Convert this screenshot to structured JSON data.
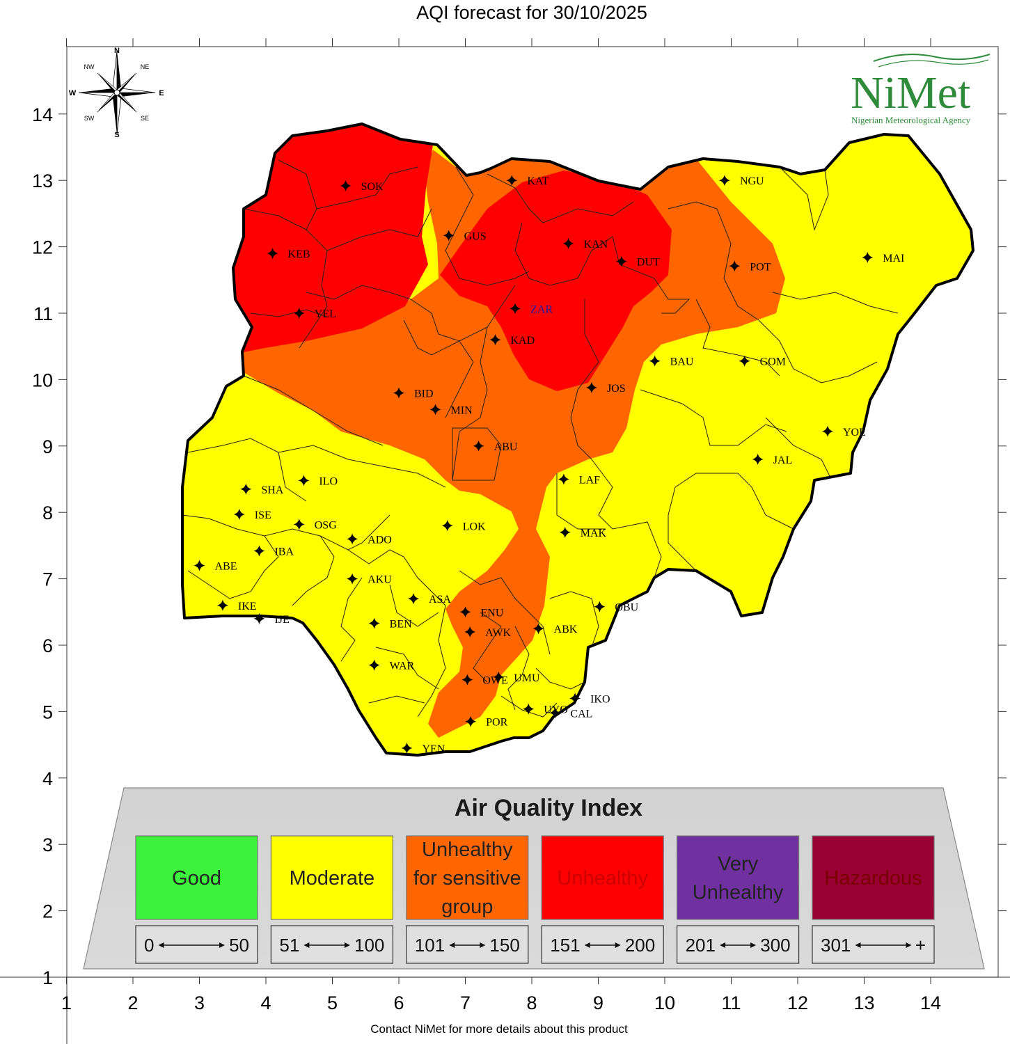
{
  "title": "AQI forecast for 30/10/2025",
  "footer": "Contact NiMet for more details about this product",
  "axes": {
    "x_ticks": [
      "1",
      "2",
      "3",
      "4",
      "5",
      "6",
      "7",
      "8",
      "9",
      "10",
      "11",
      "12",
      "13",
      "14"
    ],
    "y_ticks": [
      "1",
      "2",
      "3",
      "4",
      "5",
      "6",
      "7",
      "8",
      "9",
      "10",
      "11",
      "12",
      "13",
      "14"
    ]
  },
  "compass": {
    "n": "N",
    "s": "S",
    "e": "E",
    "w": "W",
    "ne": "NE",
    "nw": "NW",
    "se": "SE",
    "sw": "SW"
  },
  "logo": {
    "name": "NiMet",
    "agency": "Nigerian Meteorological Agency"
  },
  "colors": {
    "good": "#3cf23c",
    "moderate": "#ffff00",
    "sensitive": "#ff6600",
    "unhealthy": "#ff0000",
    "very_unhealthy": "#7030a0",
    "hazardous": "#990033"
  },
  "cities": [
    {
      "code": "SOK",
      "lon": 5.2,
      "lat": 12.92
    },
    {
      "code": "KAT",
      "lon": 7.7,
      "lat": 13.0
    },
    {
      "code": "NGU",
      "lon": 10.9,
      "lat": 13.0
    },
    {
      "code": "KEB",
      "lon": 4.1,
      "lat": 11.9
    },
    {
      "code": "GUS",
      "lon": 6.75,
      "lat": 12.17
    },
    {
      "code": "KAN",
      "lon": 8.55,
      "lat": 12.05
    },
    {
      "code": "DUT",
      "lon": 9.35,
      "lat": 11.78
    },
    {
      "code": "POT",
      "lon": 11.05,
      "lat": 11.71
    },
    {
      "code": "MAI",
      "lon": 13.05,
      "lat": 11.84
    },
    {
      "code": "YEL",
      "lon": 4.5,
      "lat": 11.0
    },
    {
      "code": "ZAR",
      "lon": 7.75,
      "lat": 11.07
    },
    {
      "code": "KAD",
      "lon": 7.45,
      "lat": 10.6
    },
    {
      "code": "BAU",
      "lon": 9.85,
      "lat": 10.28
    },
    {
      "code": "GOM",
      "lon": 11.2,
      "lat": 10.28
    },
    {
      "code": "BID",
      "lon": 6.0,
      "lat": 9.8
    },
    {
      "code": "JOS",
      "lon": 8.9,
      "lat": 9.88
    },
    {
      "code": "MIN",
      "lon": 6.55,
      "lat": 9.55
    },
    {
      "code": "YOL",
      "lon": 12.45,
      "lat": 9.22
    },
    {
      "code": "ABU",
      "lon": 7.2,
      "lat": 9.0
    },
    {
      "code": "JAL",
      "lon": 11.4,
      "lat": 8.8
    },
    {
      "code": "LAF",
      "lon": 8.48,
      "lat": 8.5
    },
    {
      "code": "ILO",
      "lon": 4.57,
      "lat": 8.48
    },
    {
      "code": "SHA",
      "lon": 3.7,
      "lat": 8.35
    },
    {
      "code": "ISE",
      "lon": 3.6,
      "lat": 7.97
    },
    {
      "code": "OSG",
      "lon": 4.5,
      "lat": 7.82
    },
    {
      "code": "LOK",
      "lon": 6.73,
      "lat": 7.8
    },
    {
      "code": "MAK",
      "lon": 8.5,
      "lat": 7.7
    },
    {
      "code": "ADO",
      "lon": 5.3,
      "lat": 7.6
    },
    {
      "code": "IBA",
      "lon": 3.9,
      "lat": 7.42
    },
    {
      "code": "ABE",
      "lon": 3.0,
      "lat": 7.2
    },
    {
      "code": "AKU",
      "lon": 5.3,
      "lat": 7.0
    },
    {
      "code": "ASA",
      "lon": 6.22,
      "lat": 6.7
    },
    {
      "code": "IKE",
      "lon": 3.35,
      "lat": 6.6
    },
    {
      "code": "IJE",
      "lon": 3.9,
      "lat": 6.4
    },
    {
      "code": "ENU",
      "lon": 7.0,
      "lat": 6.5
    },
    {
      "code": "OBU",
      "lon": 9.02,
      "lat": 6.58
    },
    {
      "code": "BEN",
      "lon": 5.63,
      "lat": 6.33
    },
    {
      "code": "ABK",
      "lon": 8.1,
      "lat": 6.25
    },
    {
      "code": "AWK",
      "lon": 7.07,
      "lat": 6.2
    },
    {
      "code": "WAR",
      "lon": 5.63,
      "lat": 5.7
    },
    {
      "code": "UMU",
      "lon": 7.5,
      "lat": 5.52
    },
    {
      "code": "OWE",
      "lon": 7.03,
      "lat": 5.48
    },
    {
      "code": "IKO",
      "lon": 8.65,
      "lat": 5.2
    },
    {
      "code": "UYO",
      "lon": 7.95,
      "lat": 5.04
    },
    {
      "code": "CAL",
      "lon": 8.35,
      "lat": 4.98
    },
    {
      "code": "POR",
      "lon": 7.08,
      "lat": 4.85
    },
    {
      "code": "YEN",
      "lon": 6.12,
      "lat": 4.45
    }
  ],
  "legend": {
    "title": "Air Quality Index",
    "categories": [
      {
        "lines": [
          "Good"
        ],
        "min": "0",
        "max": "50"
      },
      {
        "lines": [
          "Moderate"
        ],
        "min": "51",
        "max": "100"
      },
      {
        "lines": [
          "Unhealthy",
          "for sensitive",
          "group"
        ],
        "min": "101",
        "max": "150"
      },
      {
        "lines": [
          "Unhealthy"
        ],
        "min": "151",
        "max": "200"
      },
      {
        "lines": [
          "Very",
          "Unhealthy"
        ],
        "min": "201",
        "max": "300"
      },
      {
        "lines": [
          "Hazardous"
        ],
        "min": "301",
        "max": "+"
      }
    ]
  }
}
